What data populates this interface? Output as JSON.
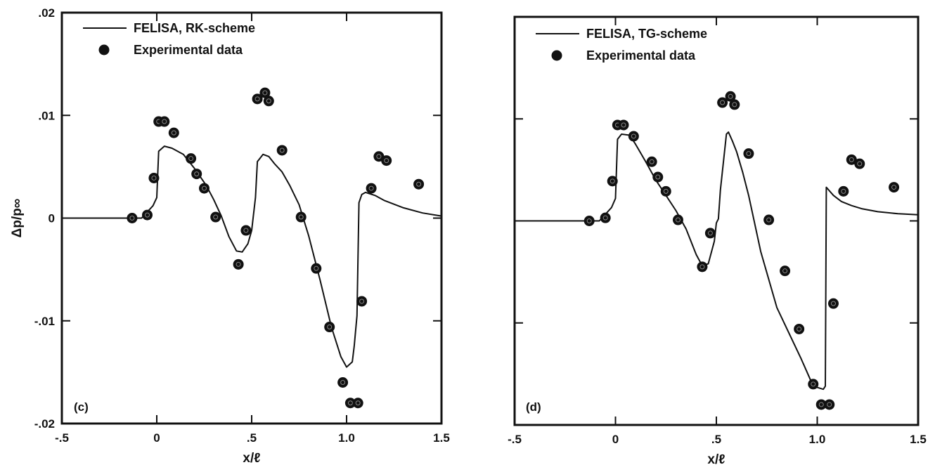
{
  "chart_data": [
    {
      "type": "line+scatter",
      "panel_label": "(c)",
      "xlabel": "x/ℓ",
      "ylabel": "Δp/p∞",
      "xlim": [
        -0.5,
        1.5
      ],
      "ylim": [
        -0.02,
        0.02
      ],
      "xticks": [
        -0.5,
        0,
        0.5,
        1.0,
        1.5
      ],
      "xtick_labels": [
        "-.5",
        "0",
        ".5",
        "1.0",
        "1.5"
      ],
      "yticks": [
        -0.02,
        -0.01,
        0,
        0.01,
        0.02
      ],
      "ytick_labels": [
        "-.02",
        "-.01",
        "0",
        ".01",
        ".02"
      ],
      "grid": false,
      "legend": "top-left",
      "series": [
        {
          "name": "FELISA, RK-scheme",
          "kind": "line",
          "color": "#111111",
          "x": [
            -0.5,
            -0.08,
            -0.02,
            0.0,
            0.01,
            0.04,
            0.08,
            0.14,
            0.2,
            0.26,
            0.3,
            0.34,
            0.38,
            0.42,
            0.45,
            0.48,
            0.5,
            0.52,
            0.53,
            0.56,
            0.59,
            0.62,
            0.66,
            0.7,
            0.75,
            0.8,
            0.86,
            0.92,
            0.97,
            1.0,
            1.03,
            1.04,
            1.055,
            1.065,
            1.08,
            1.1,
            1.15,
            1.2,
            1.3,
            1.4,
            1.5
          ],
          "y": [
            0,
            0,
            0.0012,
            0.002,
            0.0065,
            0.007,
            0.0068,
            0.0062,
            0.0048,
            0.0032,
            0.0018,
            0.0002,
            -0.0018,
            -0.0032,
            -0.0033,
            -0.0025,
            -0.0012,
            0.002,
            0.0055,
            0.0062,
            0.006,
            0.0053,
            0.0045,
            0.0032,
            0.0013,
            -0.0017,
            -0.006,
            -0.0106,
            -0.0135,
            -0.0145,
            -0.014,
            -0.0125,
            -0.0095,
            0.0015,
            0.0023,
            0.0025,
            0.0022,
            0.0017,
            0.001,
            0.0005,
            0.0002
          ]
        },
        {
          "name": "Experimental data",
          "kind": "scatter",
          "color": "#111111",
          "x": [
            -0.13,
            -0.05,
            -0.015,
            0.01,
            0.04,
            0.09,
            0.18,
            0.21,
            0.25,
            0.31,
            0.43,
            0.47,
            0.53,
            0.57,
            0.59,
            0.66,
            0.76,
            0.84,
            0.91,
            0.98,
            1.02,
            1.06,
            1.08,
            1.13,
            1.17,
            1.21,
            1.38
          ],
          "y": [
            0,
            0.0003,
            0.0039,
            0.0094,
            0.0094,
            0.0083,
            0.0058,
            0.0043,
            0.0029,
            0.0001,
            -0.0045,
            -0.0012,
            0.0116,
            0.0122,
            0.0114,
            0.0066,
            0.0001,
            -0.0049,
            -0.0106,
            -0.016,
            -0.018,
            -0.018,
            -0.0081,
            0.0029,
            0.006,
            0.0056,
            0.0033
          ]
        }
      ]
    },
    {
      "type": "line+scatter",
      "panel_label": "(d)",
      "xlabel": "x/ℓ",
      "ylabel": "",
      "xlim": [
        -0.5,
        1.5
      ],
      "ylim": [
        -0.02,
        0.02
      ],
      "xticks": [
        -0.5,
        0,
        0.5,
        1.0,
        1.5
      ],
      "xtick_labels": [
        "-.5",
        "0",
        ".5",
        "1.0",
        "1.5"
      ],
      "yticks": [
        -0.02,
        -0.01,
        0,
        0.01,
        0.02
      ],
      "ytick_labels": [],
      "grid": false,
      "legend": "top-left",
      "series": [
        {
          "name": "FELISA, TG-scheme",
          "kind": "line",
          "color": "#111111",
          "x": [
            -0.5,
            -0.08,
            -0.02,
            0.0,
            0.01,
            0.03,
            0.07,
            0.1,
            0.15,
            0.2,
            0.25,
            0.3,
            0.35,
            0.4,
            0.43,
            0.46,
            0.49,
            0.5,
            0.51,
            0.52,
            0.55,
            0.56,
            0.58,
            0.6,
            0.63,
            0.66,
            0.72,
            0.8,
            0.86,
            0.92,
            0.98,
            1.03,
            1.04,
            1.045,
            1.08,
            1.12,
            1.17,
            1.22,
            1.3,
            1.4,
            1.5
          ],
          "y": [
            0,
            0,
            0.0013,
            0.0022,
            0.008,
            0.0085,
            0.0084,
            0.0075,
            0.0058,
            0.004,
            0.0025,
            0.001,
            -0.0008,
            -0.0033,
            -0.0044,
            -0.0042,
            -0.002,
            -0.0002,
            0.0002,
            0.003,
            0.0085,
            0.0087,
            0.0078,
            0.0068,
            0.0048,
            0.0025,
            -0.003,
            -0.0085,
            -0.011,
            -0.0135,
            -0.0162,
            -0.0165,
            -0.0162,
            0.0033,
            0.0025,
            0.0019,
            0.0015,
            0.0012,
            0.0009,
            0.0007,
            0.0006
          ]
        },
        {
          "name": "Experimental data",
          "kind": "scatter",
          "color": "#111111",
          "x": [
            -0.13,
            -0.05,
            -0.015,
            0.01,
            0.04,
            0.09,
            0.18,
            0.21,
            0.25,
            0.31,
            0.43,
            0.47,
            0.53,
            0.57,
            0.59,
            0.66,
            0.76,
            0.84,
            0.91,
            0.98,
            1.02,
            1.06,
            1.08,
            1.13,
            1.17,
            1.21,
            1.38
          ],
          "y": [
            0,
            0.0003,
            0.0039,
            0.0094,
            0.0094,
            0.0083,
            0.0058,
            0.0043,
            0.0029,
            0.0001,
            -0.0045,
            -0.0012,
            0.0116,
            0.0122,
            0.0114,
            0.0066,
            0.0001,
            -0.0049,
            -0.0106,
            -0.016,
            -0.018,
            -0.018,
            -0.0081,
            0.0029,
            0.006,
            0.0056,
            0.0033
          ]
        }
      ]
    }
  ]
}
